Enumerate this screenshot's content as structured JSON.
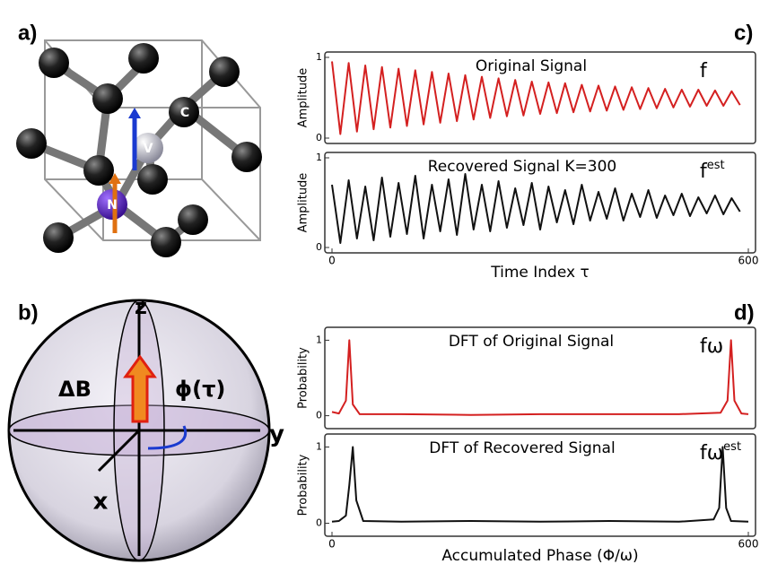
{
  "panel_labels": [
    "a)",
    "b)",
    "c)",
    "d)"
  ],
  "crystal": {
    "atoms": [
      "C",
      "V",
      "N"
    ]
  },
  "bloch": {
    "labels": [
      "z",
      "ΔB",
      "ϕ(τ)",
      "y",
      "x"
    ]
  },
  "chart_data": [
    {
      "type": "line",
      "annotation": "Original Signal",
      "ylabel": "Amplitude",
      "series": [
        {
          "name": "f",
          "color": "#d42020",
          "x": [
            0,
            12,
            24,
            36,
            48,
            60,
            72,
            84,
            96,
            108,
            120,
            132,
            144,
            156,
            168,
            180,
            192,
            204,
            216,
            228,
            240,
            252,
            264,
            276,
            288,
            300,
            312,
            324,
            336,
            348,
            360,
            372,
            384,
            396,
            408,
            420,
            432,
            444,
            456,
            468,
            480,
            492,
            504,
            516,
            528,
            540,
            552,
            564,
            576,
            588
          ],
          "values": [
            0.95,
            0.05,
            0.93,
            0.08,
            0.9,
            0.11,
            0.88,
            0.13,
            0.86,
            0.15,
            0.84,
            0.17,
            0.82,
            0.19,
            0.8,
            0.21,
            0.78,
            0.23,
            0.76,
            0.25,
            0.74,
            0.27,
            0.72,
            0.28,
            0.7,
            0.3,
            0.69,
            0.31,
            0.68,
            0.32,
            0.66,
            0.33,
            0.65,
            0.34,
            0.64,
            0.35,
            0.63,
            0.36,
            0.62,
            0.37,
            0.61,
            0.38,
            0.6,
            0.39,
            0.6,
            0.4,
            0.59,
            0.4,
            0.58,
            0.41
          ]
        }
      ],
      "xlim": [
        0,
        600
      ],
      "ylim": [
        0,
        1
      ],
      "yticks": [
        0,
        1
      ]
    },
    {
      "type": "line",
      "annotation": "Recovered Signal K=300",
      "ylabel": "Amplitude",
      "xlabel": "Time Index τ",
      "series": [
        {
          "name": "f",
          "name_sup": "est",
          "color": "#111111",
          "x": [
            0,
            12,
            24,
            36,
            48,
            60,
            72,
            84,
            96,
            108,
            120,
            132,
            144,
            156,
            168,
            180,
            192,
            204,
            216,
            228,
            240,
            252,
            264,
            276,
            288,
            300,
            312,
            324,
            336,
            348,
            360,
            372,
            384,
            396,
            408,
            420,
            432,
            444,
            456,
            468,
            480,
            492,
            504,
            516,
            528,
            540,
            552,
            564,
            576,
            588
          ],
          "values": [
            0.7,
            0.05,
            0.75,
            0.1,
            0.68,
            0.08,
            0.78,
            0.12,
            0.72,
            0.15,
            0.8,
            0.1,
            0.7,
            0.18,
            0.76,
            0.14,
            0.82,
            0.2,
            0.7,
            0.18,
            0.74,
            0.22,
            0.66,
            0.25,
            0.72,
            0.2,
            0.68,
            0.28,
            0.64,
            0.26,
            0.7,
            0.3,
            0.62,
            0.32,
            0.66,
            0.3,
            0.6,
            0.34,
            0.64,
            0.33,
            0.58,
            0.36,
            0.6,
            0.35,
            0.56,
            0.38,
            0.58,
            0.37,
            0.55,
            0.4
          ]
        }
      ],
      "xlim": [
        0,
        600
      ],
      "xticks": [
        0,
        600
      ],
      "ylim": [
        0,
        1
      ],
      "yticks": [
        0,
        1
      ]
    },
    {
      "type": "line",
      "annotation": "DFT of Original Signal",
      "ylabel": "Probability",
      "series": [
        {
          "name": "fω",
          "color": "#d42020",
          "x": [
            0,
            10,
            20,
            25,
            30,
            40,
            100,
            200,
            300,
            400,
            500,
            560,
            570,
            575,
            580,
            590,
            600
          ],
          "values": [
            0.05,
            0.03,
            0.2,
            1.0,
            0.15,
            0.02,
            0.02,
            0.01,
            0.02,
            0.02,
            0.02,
            0.04,
            0.2,
            1.0,
            0.2,
            0.03,
            0.02
          ]
        }
      ],
      "xlim": [
        0,
        600
      ],
      "ylim": [
        -0.1,
        1.1
      ],
      "yticks": [
        0,
        1
      ]
    },
    {
      "type": "line",
      "annotation": "DFT of Recovered Signal",
      "ylabel": "Probability",
      "xlabel": "Accumulated  Phase (Φ/ω)",
      "series": [
        {
          "name": "fω",
          "name_sup": "est",
          "color": "#111111",
          "x": [
            0,
            10,
            20,
            25,
            30,
            35,
            45,
            100,
            200,
            300,
            400,
            500,
            550,
            558,
            563,
            568,
            575,
            600
          ],
          "values": [
            0.02,
            0.03,
            0.1,
            0.5,
            1.0,
            0.3,
            0.03,
            0.02,
            0.03,
            0.02,
            0.03,
            0.02,
            0.05,
            0.2,
            1.0,
            0.2,
            0.03,
            0.02
          ]
        }
      ],
      "xlim": [
        0,
        600
      ],
      "xticks": [
        0,
        600
      ],
      "ylim": [
        -0.1,
        1.1
      ],
      "yticks": [
        0,
        1
      ]
    }
  ]
}
